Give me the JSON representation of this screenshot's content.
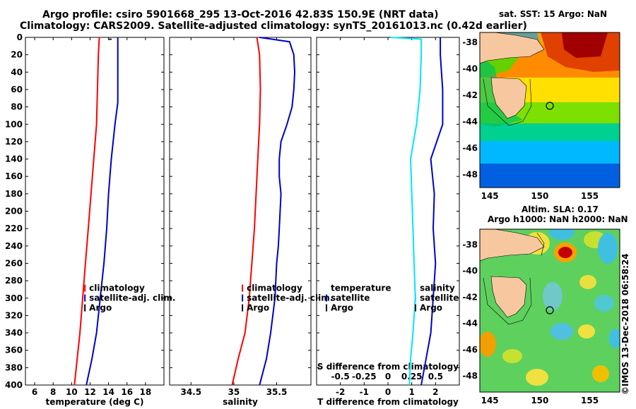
{
  "header": {
    "title_line1": "Argo profile: csiro 5901668_295 13-Oct-2016 42.83S 150.9E (NRT data)",
    "title_line2": "Climatology: CARS2009. Satellite-adjusted climatology: synTS_20161013.nc (0.42d earlier)"
  },
  "colors": {
    "red": "#ff0000",
    "blue": "#0000cc",
    "cyan": "#00e5ff"
  },
  "chart_data": [
    {
      "type": "line",
      "name": "temperature",
      "xlabel": "temperature (deg C)",
      "ylabel": "",
      "xlim": [
        5,
        20
      ],
      "ylim": [
        0,
        400
      ],
      "y_inverted": true,
      "xticks": [
        6,
        8,
        10,
        12,
        14,
        16,
        18
      ],
      "yticks": [
        0,
        20,
        40,
        60,
        80,
        100,
        120,
        140,
        160,
        180,
        200,
        220,
        240,
        260,
        280,
        300,
        320,
        340,
        360,
        380,
        400
      ],
      "series": [
        {
          "name": "climatology",
          "color": "red",
          "points": [
            [
              13.0,
              0
            ],
            [
              12.9,
              20
            ],
            [
              12.8,
              60
            ],
            [
              12.7,
              100
            ],
            [
              12.4,
              140
            ],
            [
              12.1,
              180
            ],
            [
              11.8,
              220
            ],
            [
              11.5,
              260
            ],
            [
              11.2,
              300
            ],
            [
              10.9,
              340
            ],
            [
              10.6,
              370
            ],
            [
              10.3,
              400
            ]
          ]
        },
        {
          "name": "satellite-adj. clim.",
          "color": "blue",
          "points": [
            [
              15.0,
              0
            ],
            [
              15.0,
              20
            ],
            [
              15.0,
              60
            ],
            [
              15.0,
              75
            ],
            [
              14.7,
              100
            ],
            [
              14.3,
              140
            ],
            [
              14.0,
              180
            ],
            [
              13.8,
              220
            ],
            [
              13.5,
              260
            ],
            [
              13.1,
              300
            ],
            [
              12.7,
              340
            ],
            [
              12.2,
              370
            ],
            [
              11.6,
              400
            ]
          ]
        }
      ],
      "legend": [
        "climatology",
        "satellite-adj. clim.",
        "Argo"
      ],
      "legend_position": "center-right",
      "annotation": "-"
    },
    {
      "type": "line",
      "name": "salinity",
      "xlabel": "salinity",
      "xlim": [
        34.25,
        35.9
      ],
      "ylim": [
        0,
        400
      ],
      "y_inverted": true,
      "xticks": [
        34.5,
        35,
        35.5
      ],
      "yticks": [
        0,
        20,
        40,
        60,
        80,
        100,
        120,
        140,
        160,
        180,
        200,
        220,
        240,
        260,
        280,
        300,
        320,
        340,
        360,
        380,
        400
      ],
      "series": [
        {
          "name": "climatology",
          "color": "red",
          "points": [
            [
              35.27,
              0
            ],
            [
              35.3,
              20
            ],
            [
              35.31,
              60
            ],
            [
              35.3,
              100
            ],
            [
              35.28,
              140
            ],
            [
              35.26,
              180
            ],
            [
              35.24,
              220
            ],
            [
              35.21,
              260
            ],
            [
              35.18,
              300
            ],
            [
              35.13,
              340
            ],
            [
              35.05,
              370
            ],
            [
              34.98,
              400
            ]
          ]
        },
        {
          "name": "satellite-adj. clim.",
          "color": "blue",
          "points": [
            [
              35.3,
              0
            ],
            [
              35.65,
              5
            ],
            [
              35.7,
              20
            ],
            [
              35.71,
              40
            ],
            [
              35.7,
              60
            ],
            [
              35.68,
              80
            ],
            [
              35.62,
              100
            ],
            [
              35.55,
              120
            ],
            [
              35.53,
              140
            ],
            [
              35.53,
              160
            ],
            [
              35.55,
              180
            ],
            [
              35.54,
              200
            ],
            [
              35.53,
              220
            ],
            [
              35.52,
              240
            ],
            [
              35.5,
              260
            ],
            [
              35.48,
              300
            ],
            [
              35.43,
              340
            ],
            [
              35.38,
              370
            ],
            [
              35.3,
              400
            ]
          ]
        }
      ],
      "legend": [
        "climatology",
        "satellite-adj. clim.",
        "Argo"
      ],
      "legend_position": "center-right"
    },
    {
      "type": "line",
      "name": "difference",
      "xlabel": "T difference from climatology",
      "xlabel_top": "S difference from climatology",
      "xlim": [
        -3,
        3
      ],
      "ylim": [
        0,
        400
      ],
      "y_inverted": true,
      "xticks": [
        -2,
        -1,
        0,
        1,
        2
      ],
      "xticks_top": [
        -0.5,
        -0.25,
        0,
        0.25,
        0.5
      ],
      "yticks": [
        0,
        20,
        40,
        60,
        80,
        100,
        120,
        140,
        160,
        180,
        200,
        220,
        240,
        260,
        280,
        300,
        320,
        340,
        360,
        380,
        400
      ],
      "series": [
        {
          "name": "salinity",
          "color": "cyan",
          "points": [
            [
              0.1,
              0
            ],
            [
              1.4,
              2
            ],
            [
              1.4,
              20
            ],
            [
              1.35,
              60
            ],
            [
              1.2,
              100
            ],
            [
              0.95,
              140
            ],
            [
              1.0,
              180
            ],
            [
              1.05,
              220
            ],
            [
              1.1,
              260
            ],
            [
              1.15,
              300
            ],
            [
              1.05,
              340
            ],
            [
              0.95,
              370
            ],
            [
              0.9,
              400
            ]
          ]
        },
        {
          "name": "temperature",
          "color": "blue",
          "points": [
            [
              2.2,
              0
            ],
            [
              2.2,
              20
            ],
            [
              2.3,
              60
            ],
            [
              2.3,
              100
            ],
            [
              1.8,
              140
            ],
            [
              1.95,
              180
            ],
            [
              1.9,
              220
            ],
            [
              2.0,
              260
            ],
            [
              1.9,
              300
            ],
            [
              1.8,
              340
            ],
            [
              1.6,
              370
            ],
            [
              1.4,
              400
            ]
          ]
        }
      ],
      "legend_left": [
        "temperature",
        "satellite",
        "Argo"
      ],
      "legend_right": [
        "salinity",
        "satellite",
        "Argo"
      ],
      "legend_position": "center"
    }
  ],
  "maps": {
    "sst": {
      "title": "sat. SST: 15 Argo: NaN",
      "xticks": [
        "145",
        "150",
        "155"
      ],
      "yticks": [
        "-38",
        "-40",
        "-42",
        "-44",
        "-46",
        "-48"
      ]
    },
    "sla": {
      "title_line1": "Altim. SLA: 0.17",
      "title_line2": "Argo h1000: NaN h2000: NaN",
      "xticks": [
        "145",
        "150",
        "155"
      ],
      "yticks": [
        "-38",
        "-40",
        "-42",
        "-44",
        "-46",
        "-48"
      ]
    },
    "argo_lon": 150.9,
    "argo_lat": -42.83
  },
  "credit": "©IMOS 13-Dec-2018 06:58:24"
}
